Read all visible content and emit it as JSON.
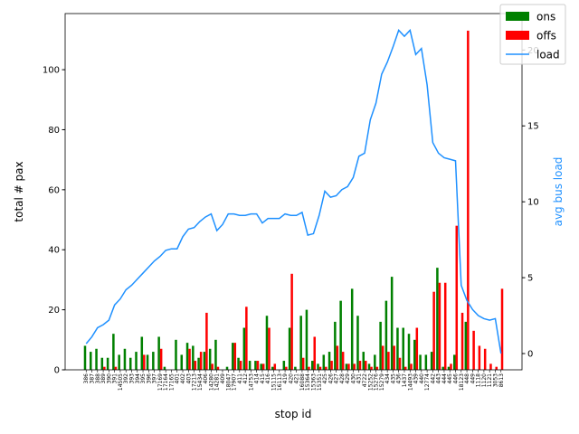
{
  "chart_data": {
    "type": "bar",
    "xlabel": "stop id",
    "ylabel": "total # pax",
    "y2label": "avg bus load",
    "categories": [
      "386",
      "387",
      "388",
      "389",
      "390",
      "391",
      "14505",
      "392",
      "393",
      "394",
      "395",
      "396",
      "397",
      "17169",
      "17164",
      "17165",
      "401",
      "402",
      "403",
      "17213",
      "15434",
      "406",
      "14280",
      "14281",
      "409",
      "18047",
      "17907",
      "411",
      "412",
      "14753",
      "414",
      "415",
      "416",
      "15115",
      "16113",
      "419",
      "420",
      "421",
      "16088",
      "15364",
      "15363",
      "15351",
      "425",
      "426",
      "427",
      "428",
      "429",
      "430",
      "431",
      "4722",
      "15252",
      "15276",
      "15279",
      "434",
      "435",
      "436",
      "1437",
      "14493",
      "439",
      "440",
      "12774",
      "442",
      "443",
      "444",
      "445",
      "446",
      "18123",
      "448",
      "449",
      "1118",
      "1120",
      "1121",
      "3053",
      "8613"
    ],
    "series": [
      {
        "name": "ons",
        "color": "#008000",
        "values": [
          8,
          6,
          7,
          4,
          4,
          12,
          5,
          7,
          4,
          6,
          11,
          5,
          6,
          11,
          1,
          0,
          10,
          5,
          9,
          8,
          4,
          6,
          7,
          10,
          0,
          1,
          9,
          4,
          14,
          3,
          3,
          2,
          18,
          1,
          0,
          3,
          14,
          1,
          18,
          20,
          3,
          2,
          5,
          6,
          16,
          23,
          2,
          27,
          18,
          6,
          2,
          5,
          16,
          23,
          31,
          14,
          14,
          12,
          10,
          5,
          5,
          6,
          34,
          1,
          1,
          5,
          0,
          16,
          0,
          0,
          0,
          0,
          0,
          0
        ]
      },
      {
        "name": "offs",
        "color": "#ff0000",
        "values": [
          0,
          0,
          0,
          1,
          0,
          1,
          0,
          0,
          0,
          0,
          5,
          0,
          0,
          7,
          0,
          0,
          0,
          0,
          7,
          3,
          6,
          19,
          2,
          1,
          0,
          0,
          9,
          3,
          21,
          0,
          3,
          2,
          14,
          2,
          0,
          1,
          32,
          0,
          4,
          1,
          11,
          1,
          1,
          3,
          8,
          6,
          2,
          2,
          3,
          3,
          1,
          1,
          8,
          6,
          8,
          4,
          1,
          2,
          14,
          0,
          0,
          26,
          29,
          29,
          2,
          48,
          19,
          113,
          13,
          8,
          7,
          2,
          1,
          27
        ]
      },
      {
        "name": "load",
        "color": "#1e90ff",
        "type": "line",
        "axis": "y2",
        "values": [
          0.65,
          1.1,
          1.7,
          1.9,
          2.2,
          3.2,
          3.6,
          4.2,
          4.5,
          4.9,
          5.3,
          5.7,
          6.1,
          6.4,
          6.8,
          6.9,
          6.9,
          7.7,
          8.2,
          8.3,
          8.7,
          9.0,
          9.2,
          8.1,
          8.5,
          9.2,
          9.2,
          9.1,
          9.1,
          9.2,
          9.2,
          8.6,
          8.9,
          8.9,
          8.9,
          9.2,
          9.1,
          9.1,
          9.3,
          7.8,
          7.9,
          9.1,
          10.7,
          10.3,
          10.4,
          10.8,
          11.0,
          11.6,
          13.0,
          13.2,
          15.4,
          16.5,
          18.4,
          19.2,
          20.2,
          21.3,
          20.9,
          21.3,
          19.7,
          20.1,
          17.7,
          13.9,
          13.2,
          12.9,
          12.8,
          12.7,
          4.5,
          3.5,
          2.9,
          2.5,
          2.3,
          2.2,
          2.3,
          0.0
        ]
      }
    ],
    "ylim": [
      0,
      118.7
    ],
    "yticks": [
      0,
      20,
      40,
      60,
      80,
      100
    ],
    "y2lim": [
      -1.07,
      22.4
    ],
    "y2ticks": [
      0,
      5,
      10,
      15,
      20
    ],
    "legend": "upper right"
  }
}
